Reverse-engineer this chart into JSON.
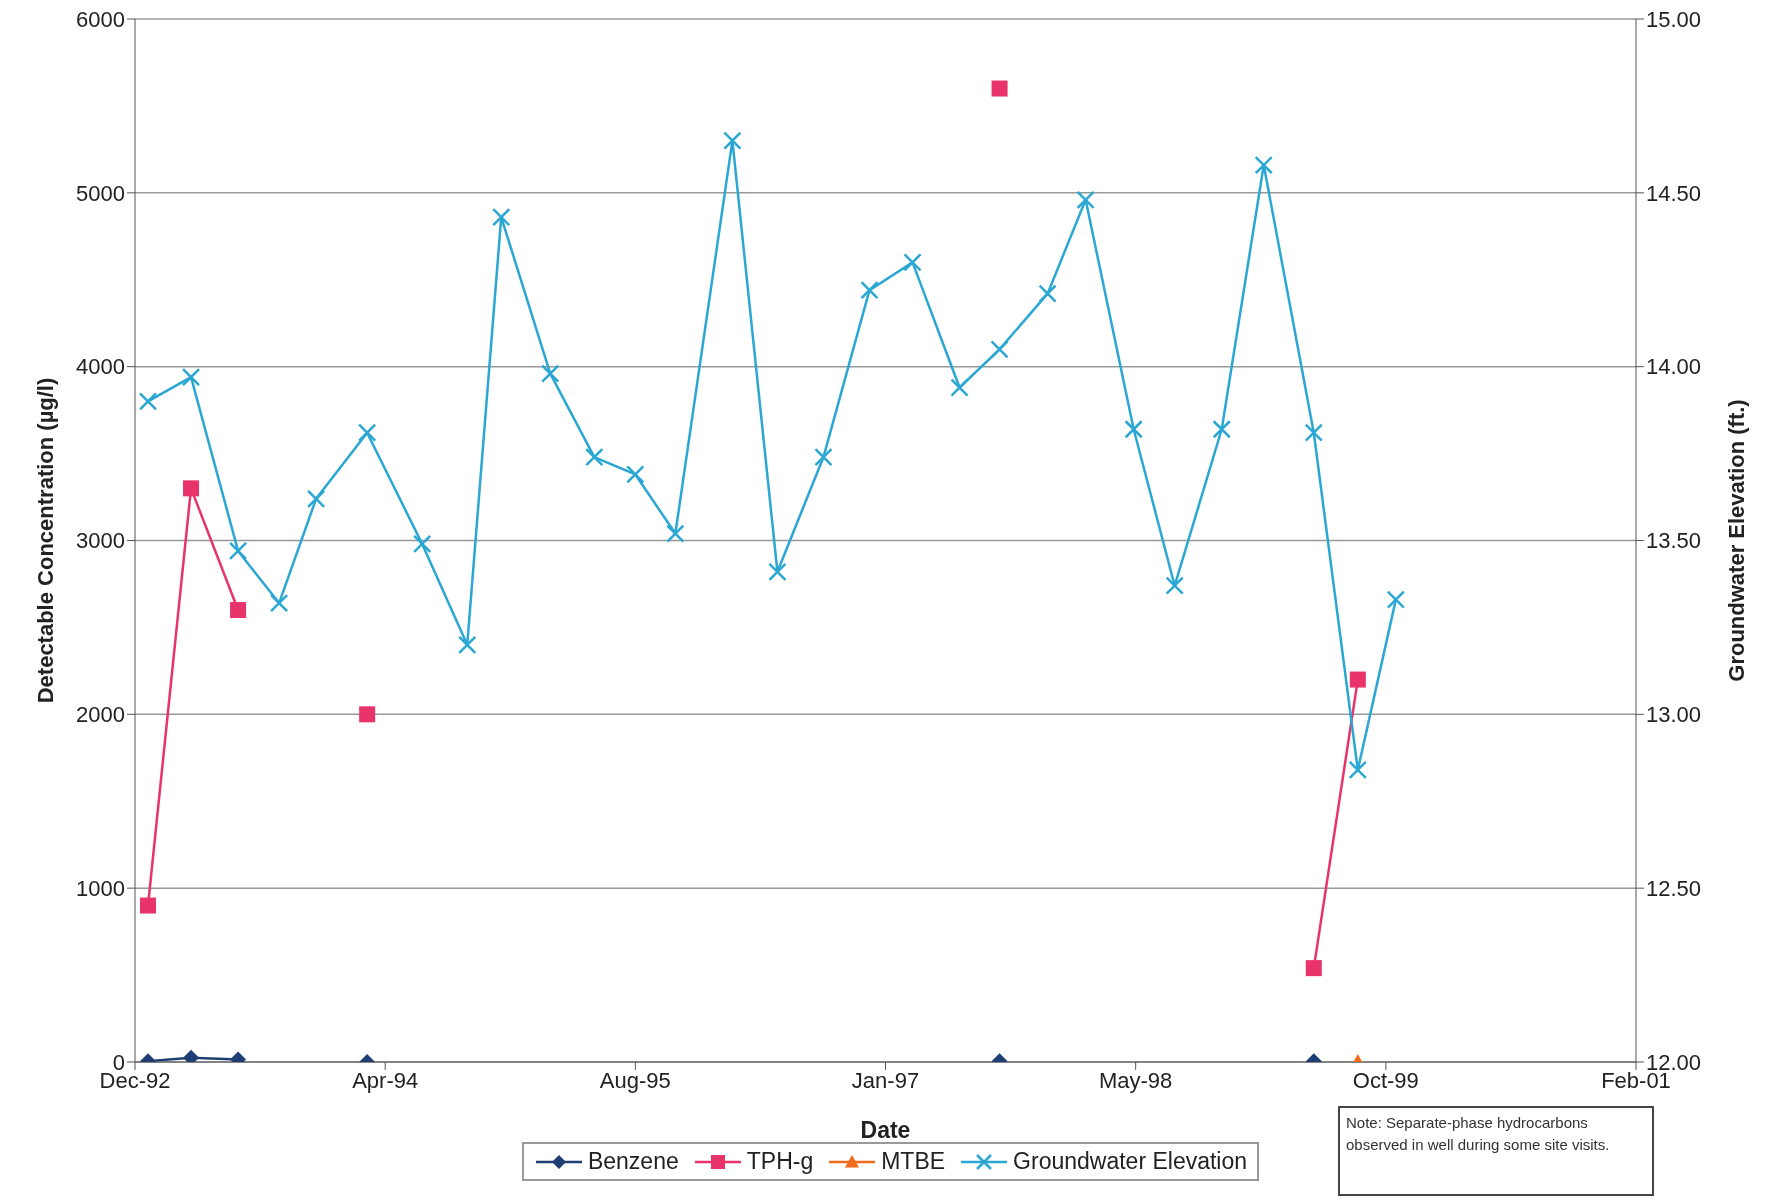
{
  "chart_data": {
    "type": "line",
    "xlabel": "Date",
    "ylabel": "Detectable Concentration (µg/l)",
    "y2label": "Groundwater Elevation (ft.)",
    "x": [
      "1992-12-27",
      "1993-03-23",
      "1993-06-25",
      "1993-09-15",
      "1993-11-28",
      "1994-03-10",
      "1994-06-28",
      "1994-09-26",
      "1994-12-03",
      "1995-03-11",
      "1995-06-07",
      "1995-08-28",
      "1995-11-16",
      "1996-03-09",
      "1996-06-07",
      "1996-09-07",
      "1996-12-08",
      "1997-03-04",
      "1997-06-06",
      "1997-08-25",
      "1997-11-29",
      "1998-02-13",
      "1998-05-20",
      "1998-08-10",
      "1998-11-12",
      "1999-02-04",
      "1999-05-15",
      "1999-08-11",
      "1999-10-26"
    ],
    "series": [
      {
        "name": "Benzene",
        "color": "#1f3f74",
        "marker": "diamond",
        "values": [
          5,
          25,
          15,
          null,
          null,
          0,
          null,
          null,
          null,
          null,
          null,
          null,
          null,
          null,
          null,
          null,
          null,
          null,
          null,
          5,
          null,
          null,
          null,
          null,
          null,
          null,
          5,
          null,
          null
        ]
      },
      {
        "name": "TPH-g",
        "color": "#e8336b",
        "marker": "square",
        "values": [
          900,
          3300,
          2600,
          null,
          null,
          2000,
          null,
          null,
          null,
          null,
          null,
          null,
          null,
          null,
          null,
          null,
          null,
          null,
          null,
          5600,
          null,
          null,
          null,
          null,
          null,
          null,
          540,
          2200,
          null
        ]
      },
      {
        "name": "MTBE",
        "color": "#f26b1d",
        "marker": "triangle",
        "values": [
          null,
          null,
          null,
          null,
          null,
          null,
          null,
          null,
          null,
          null,
          null,
          null,
          null,
          null,
          null,
          null,
          null,
          null,
          null,
          null,
          null,
          null,
          null,
          null,
          null,
          null,
          null,
          0,
          null
        ]
      },
      {
        "name": "Groundwater Elevation",
        "color": "#2aa7d2",
        "marker": "cross",
        "axis": "y2",
        "values": [
          13.9,
          13.97,
          13.47,
          13.32,
          13.62,
          13.81,
          13.49,
          13.2,
          14.43,
          13.98,
          13.74,
          13.69,
          13.52,
          14.65,
          13.41,
          13.74,
          14.22,
          14.3,
          13.94,
          14.05,
          14.21,
          14.48,
          13.82,
          13.37,
          13.82,
          14.58,
          13.81,
          12.84,
          13.33
        ]
      }
    ],
    "xlim": [
      "1992-12-01",
      "2001-02-17"
    ],
    "xticks": [
      {
        "value": "1992-12-01",
        "label": "Dec-92"
      },
      {
        "value": "1994-04-15",
        "label": "Apr-94"
      },
      {
        "value": "1995-08-28",
        "label": "Aug-95"
      },
      {
        "value": "1997-01-09",
        "label": "Jan-97"
      },
      {
        "value": "1998-05-24",
        "label": "May-98"
      },
      {
        "value": "1999-10-06",
        "label": "Oct-99"
      },
      {
        "value": "2001-02-17",
        "label": "Feb-01"
      }
    ],
    "ylim": [
      0,
      6000
    ],
    "yticks": [
      0,
      1000,
      2000,
      3000,
      4000,
      5000,
      6000
    ],
    "y2lim": [
      12,
      15
    ],
    "y2ticks": [
      {
        "value": 12,
        "label": "12.00"
      },
      {
        "value": 12.5,
        "label": "12.50"
      },
      {
        "value": 13,
        "label": "13.00"
      },
      {
        "value": 13.5,
        "label": "13.50"
      },
      {
        "value": 14,
        "label": "14.00"
      },
      {
        "value": 14.5,
        "label": "14.50"
      },
      {
        "value": 15,
        "label": "15.00"
      }
    ],
    "grid": "y",
    "legend": "bottom",
    "line_style": "solid",
    "annotations": [
      "Note:  Separate-phase hydrocarbons observed in well during some site visits."
    ]
  }
}
